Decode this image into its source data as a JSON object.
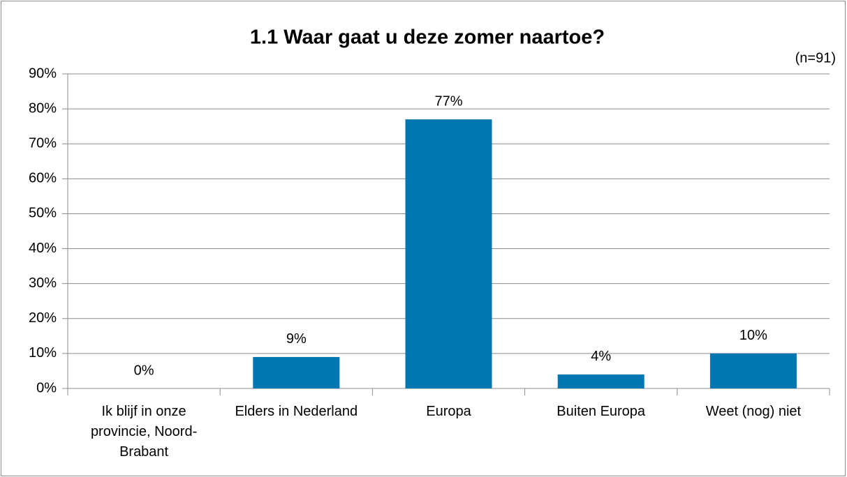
{
  "chart_data": {
    "type": "bar",
    "title": "1.1 Waar gaat u deze zomer naartoe?",
    "subtitle": "(n=91)",
    "categories": [
      "Ik blijf in onze provincie, Noord-Brabant",
      "Elders in Nederland",
      "Europa",
      "Buiten Europa",
      "Weet (nog) niet"
    ],
    "values": [
      0,
      9,
      77,
      4,
      10
    ],
    "value_labels": [
      "0%",
      "9%",
      "77%",
      "4%",
      "10%"
    ],
    "color": "#0077b0",
    "ylim": [
      0,
      90
    ],
    "yticks": [
      {
        "value": 0,
        "label": "0%"
      },
      {
        "value": 10,
        "label": "10%"
      },
      {
        "value": 20,
        "label": "20%"
      },
      {
        "value": 30,
        "label": "30%"
      },
      {
        "value": 40,
        "label": "40%"
      },
      {
        "value": 50,
        "label": "50%"
      },
      {
        "value": 60,
        "label": "60%"
      },
      {
        "value": 70,
        "label": "70%"
      },
      {
        "value": 80,
        "label": "80%"
      },
      {
        "value": 90,
        "label": "90%"
      }
    ],
    "grid": true
  }
}
